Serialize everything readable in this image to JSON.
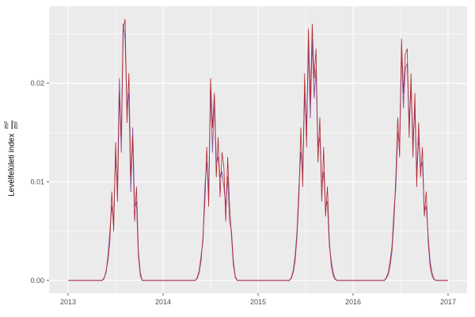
{
  "figure": {
    "background": "#ffffff"
  },
  "chart_data": {
    "type": "line",
    "title": "",
    "xlabel": "",
    "ylabel": {
      "text": "Levélfelületi index",
      "fraction_numerator": "m²",
      "fraction_denominator": "m²"
    },
    "legend_position": "none",
    "grid": true,
    "panel_background": "#ebebeb",
    "grid_color": "#ffffff",
    "tick_color": "#333333",
    "tick_text_color": "#4d4d4d",
    "xlim": [
      2012.8,
      2017.2
    ],
    "ylim": [
      -0.0013,
      0.0278
    ],
    "x_ticks": [
      2013,
      2014,
      2015,
      2016,
      2017
    ],
    "x_tick_labels": [
      "2013",
      "2014",
      "2015",
      "2016",
      "2017"
    ],
    "x_minor_ticks": [
      2013.5,
      2014.5,
      2015.5,
      2016.5
    ],
    "y_ticks": [
      0,
      0.01,
      0.02
    ],
    "y_tick_labels": [
      "0.00",
      "0.01",
      "0.02"
    ],
    "y_minor_ticks": [
      0.005,
      0.015,
      0.025
    ],
    "x": [
      2013.0,
      2013.15,
      2013.3,
      2013.36,
      2013.38,
      2013.4,
      2013.42,
      2013.44,
      2013.46,
      2013.48,
      2013.5,
      2013.52,
      2013.54,
      2013.56,
      2013.58,
      2013.6,
      2013.62,
      2013.64,
      2013.66,
      2013.68,
      2013.7,
      2013.72,
      2013.74,
      2013.76,
      2013.78,
      2013.82,
      2014.0,
      2014.2,
      2014.34,
      2014.36,
      2014.38,
      2014.4,
      2014.42,
      2014.44,
      2014.46,
      2014.48,
      2014.5,
      2014.52,
      2014.54,
      2014.56,
      2014.58,
      2014.6,
      2014.62,
      2014.64,
      2014.66,
      2014.68,
      2014.7,
      2014.72,
      2014.74,
      2014.76,
      2014.78,
      2014.82,
      2015.0,
      2015.2,
      2015.33,
      2015.35,
      2015.37,
      2015.39,
      2015.41,
      2015.43,
      2015.45,
      2015.47,
      2015.49,
      2015.51,
      2015.53,
      2015.55,
      2015.57,
      2015.59,
      2015.61,
      2015.63,
      2015.65,
      2015.67,
      2015.69,
      2015.71,
      2015.73,
      2015.75,
      2015.77,
      2015.79,
      2015.81,
      2015.83,
      2015.87,
      2016.0,
      2016.2,
      2016.33,
      2016.35,
      2016.37,
      2016.39,
      2016.41,
      2016.43,
      2016.45,
      2016.47,
      2016.49,
      2016.51,
      2016.53,
      2016.55,
      2016.57,
      2016.59,
      2016.61,
      2016.63,
      2016.65,
      2016.67,
      2016.69,
      2016.71,
      2016.73,
      2016.75,
      2016.77,
      2016.79,
      2016.81,
      2016.83,
      2016.85,
      2016.87,
      2016.9,
      2017.0
    ],
    "series": [
      {
        "name": "purple-series",
        "color": "#8d5aa8",
        "stroke_width": 1.0,
        "values": [
          0,
          0,
          0,
          0,
          0.0003,
          0.0008,
          0.0025,
          0.005,
          0.0075,
          0.006,
          0.0125,
          0.0095,
          0.0205,
          0.013,
          0.026,
          0.0245,
          0.0175,
          0.019,
          0.009,
          0.0155,
          0.0075,
          0.008,
          0.0025,
          0.0005,
          0,
          0,
          0,
          0,
          0,
          0.0003,
          0.001,
          0.0025,
          0.004,
          0.0095,
          0.012,
          0.009,
          0.0195,
          0.013,
          0.0185,
          0.012,
          0.0125,
          0.0105,
          0.011,
          0.0095,
          0.0075,
          0.0105,
          0.006,
          0.005,
          0.002,
          0.0003,
          0,
          0,
          0,
          0,
          0,
          0.0003,
          0.001,
          0.0025,
          0.005,
          0.0095,
          0.013,
          0.011,
          0.019,
          0.0155,
          0.024,
          0.0165,
          0.0245,
          0.0185,
          0.0215,
          0.0135,
          0.0145,
          0.0095,
          0.011,
          0.0075,
          0.008,
          0.0035,
          0.002,
          0.0008,
          0.0002,
          0,
          0,
          0,
          0,
          0,
          0.0003,
          0.0008,
          0.002,
          0.0035,
          0.007,
          0.0095,
          0.015,
          0.014,
          0.0235,
          0.0175,
          0.0215,
          0.022,
          0.016,
          0.0195,
          0.014,
          0.0175,
          0.011,
          0.0145,
          0.0115,
          0.012,
          0.007,
          0.0075,
          0.0045,
          0.002,
          0.0008,
          0.0002,
          0,
          0,
          0
        ]
      },
      {
        "name": "red-series",
        "color": "#b2252a",
        "stroke_width": 0.8,
        "values": [
          0,
          0,
          0,
          0,
          0.0002,
          0.001,
          0.002,
          0.004,
          0.009,
          0.005,
          0.014,
          0.008,
          0.019,
          0.0145,
          0.0255,
          0.0265,
          0.016,
          0.021,
          0.0105,
          0.0145,
          0.006,
          0.0095,
          0.003,
          0.0008,
          0,
          0,
          0,
          0,
          0,
          0.0002,
          0.0008,
          0.002,
          0.0045,
          0.008,
          0.0135,
          0.0075,
          0.0205,
          0.0155,
          0.019,
          0.0105,
          0.0145,
          0.0085,
          0.013,
          0.0115,
          0.006,
          0.0125,
          0.0075,
          0.0045,
          0.0015,
          0.0004,
          0,
          0,
          0,
          0,
          0,
          0.0002,
          0.0008,
          0.002,
          0.0045,
          0.0085,
          0.0155,
          0.0095,
          0.021,
          0.0135,
          0.0255,
          0.018,
          0.026,
          0.0205,
          0.0235,
          0.012,
          0.0165,
          0.008,
          0.0135,
          0.0065,
          0.0095,
          0.004,
          0.0015,
          0.0005,
          0.0001,
          0,
          0,
          0,
          0,
          0,
          0.0002,
          0.0006,
          0.0015,
          0.003,
          0.006,
          0.0105,
          0.0165,
          0.0125,
          0.0245,
          0.019,
          0.023,
          0.0235,
          0.0145,
          0.021,
          0.0125,
          0.019,
          0.0095,
          0.016,
          0.0105,
          0.0135,
          0.0065,
          0.009,
          0.004,
          0.0015,
          0.0005,
          0.0001,
          0,
          0,
          0
        ]
      }
    ]
  }
}
